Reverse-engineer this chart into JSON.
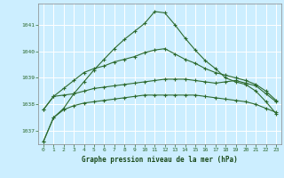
{
  "xlabel": "Graphe pression niveau de la mer (hPa)",
  "background_color": "#cceeff",
  "grid_color": "#ffffff",
  "line_color": "#2d6a2d",
  "x_values": [
    0,
    1,
    2,
    3,
    4,
    5,
    6,
    7,
    8,
    9,
    10,
    11,
    12,
    13,
    14,
    15,
    16,
    17,
    18,
    19,
    20,
    21,
    22,
    23
  ],
  "line1": [
    1036.6,
    1037.5,
    1037.8,
    1037.95,
    1038.05,
    1038.1,
    1038.15,
    1038.2,
    1038.25,
    1038.3,
    1038.35,
    1038.35,
    1038.35,
    1038.35,
    1038.35,
    1038.35,
    1038.3,
    1038.25,
    1038.2,
    1038.15,
    1038.1,
    1038.0,
    1037.85,
    1037.7
  ],
  "line2": [
    1037.8,
    1038.3,
    1038.35,
    1038.4,
    1038.5,
    1038.6,
    1038.65,
    1038.7,
    1038.75,
    1038.8,
    1038.85,
    1038.9,
    1038.95,
    1038.95,
    1038.95,
    1038.9,
    1038.85,
    1038.8,
    1038.85,
    1038.9,
    1038.8,
    1038.7,
    1038.4,
    1038.1
  ],
  "line3": [
    1037.8,
    1038.3,
    1038.6,
    1038.9,
    1039.2,
    1039.35,
    1039.45,
    1039.6,
    1039.7,
    1039.8,
    1039.95,
    1040.05,
    1040.1,
    1039.9,
    1039.7,
    1039.55,
    1039.35,
    1039.2,
    1039.1,
    1039.0,
    1038.9,
    1038.75,
    1038.5,
    1038.15
  ],
  "line4": [
    1036.6,
    1037.5,
    1037.85,
    1038.4,
    1038.85,
    1039.3,
    1039.7,
    1040.1,
    1040.45,
    1040.75,
    1041.05,
    1041.5,
    1041.45,
    1041.0,
    1040.5,
    1040.05,
    1039.65,
    1039.35,
    1039.0,
    1038.85,
    1038.75,
    1038.5,
    1038.1,
    1037.65
  ],
  "ylim": [
    1036.5,
    1041.8
  ],
  "yticks": [
    1037,
    1038,
    1039,
    1040,
    1041
  ],
  "xticks": [
    0,
    1,
    2,
    3,
    4,
    5,
    6,
    7,
    8,
    9,
    10,
    11,
    12,
    13,
    14,
    15,
    16,
    17,
    18,
    19,
    20,
    21,
    22,
    23
  ],
  "tick_color": "#2d6a2d",
  "label_color": "#1a4a1a"
}
